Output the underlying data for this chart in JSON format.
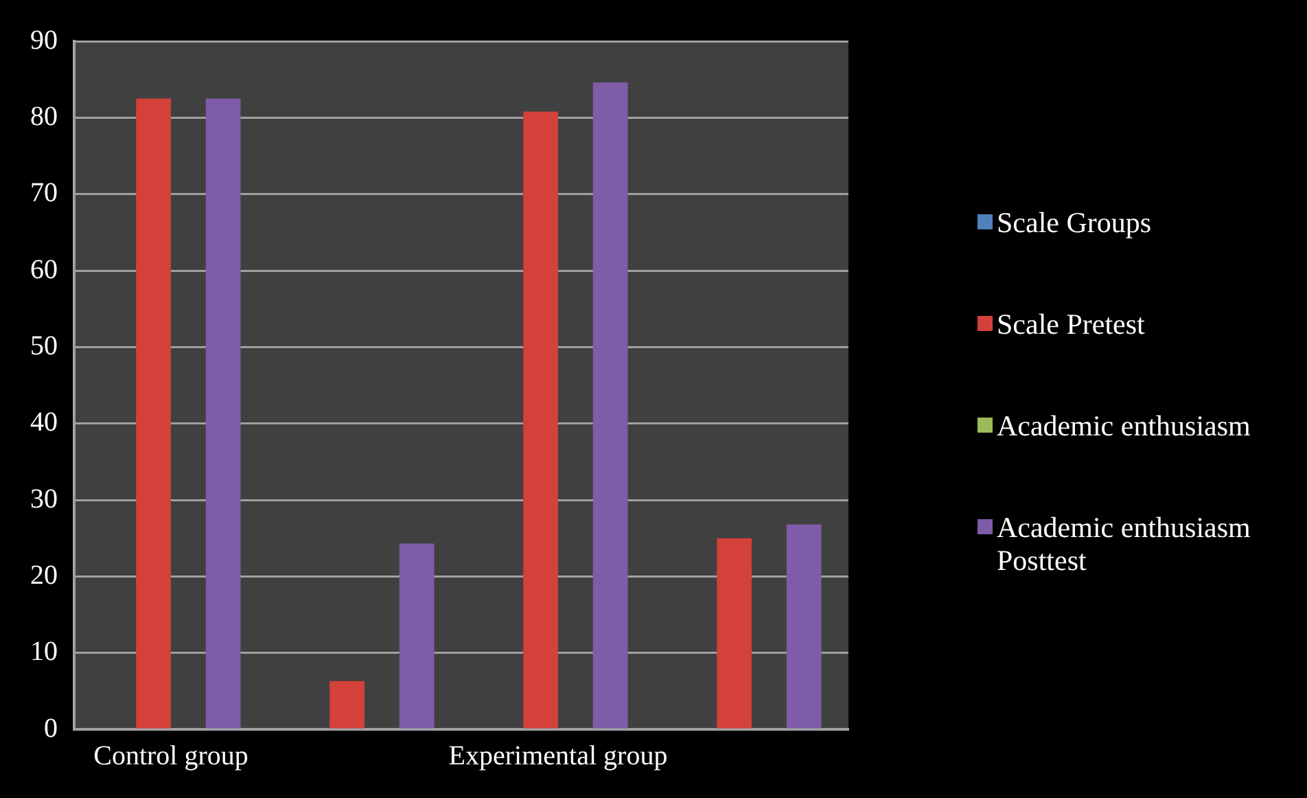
{
  "chart_data": {
    "type": "bar",
    "categories": [
      "Control group",
      null,
      "Experimental group",
      null
    ],
    "series": [
      {
        "name": "Scale  Groups",
        "color": "#4f81bd",
        "values": [
          null,
          null,
          null,
          null
        ]
      },
      {
        "name": "Scale  Pretest",
        "color": "#d4403a",
        "values": [
          82.5,
          6.3,
          80.8,
          25
        ]
      },
      {
        "name": "Academic enthusiasm",
        "color": "#9bbb59",
        "values": [
          null,
          null,
          null,
          null
        ]
      },
      {
        "name": "Academic enthusiasm Posttest",
        "color": "#7e5ca8",
        "values": [
          82.5,
          24.3,
          84.6,
          26.8
        ]
      }
    ],
    "ylim": [
      0,
      90
    ],
    "yticks": [
      0,
      10,
      20,
      30,
      40,
      50,
      60,
      70,
      80,
      90
    ],
    "grid": "y",
    "legend": "right"
  }
}
